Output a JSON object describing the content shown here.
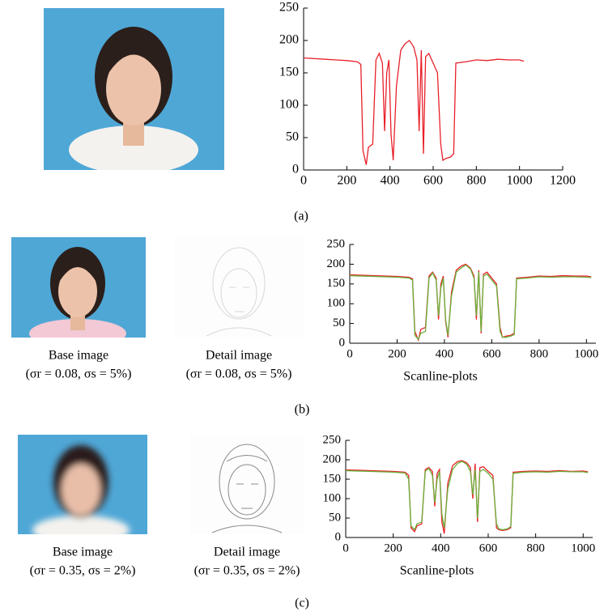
{
  "chart_data": [
    {
      "type": "line",
      "x": [
        0,
        50,
        100,
        150,
        200,
        250,
        265,
        275,
        290,
        300,
        320,
        335,
        350,
        365,
        375,
        385,
        395,
        405,
        415,
        430,
        450,
        470,
        490,
        510,
        525,
        535,
        545,
        555,
        565,
        580,
        600,
        620,
        635,
        645,
        660,
        680,
        695,
        705,
        750,
        800,
        850,
        900,
        950,
        1000,
        1020
      ],
      "series": [
        {
          "color": "#e8202a",
          "values": [
            173,
            172,
            171,
            170,
            169,
            167,
            163,
            30,
            8,
            35,
            40,
            170,
            180,
            165,
            60,
            150,
            170,
            55,
            15,
            130,
            185,
            195,
            200,
            190,
            170,
            60,
            185,
            25,
            175,
            180,
            165,
            150,
            40,
            15,
            18,
            20,
            25,
            165,
            167,
            170,
            169,
            171,
            170,
            170,
            168
          ]
        }
      ],
      "xlim": [
        0,
        1200
      ],
      "xticks": [
        0,
        200,
        400,
        600,
        800,
        1000,
        1200
      ],
      "ylim": [
        0,
        250
      ],
      "yticks": [
        0,
        50,
        100,
        150,
        200,
        250
      ]
    },
    {
      "type": "line",
      "x_label": "Scanline-plots",
      "x": [
        0,
        50,
        100,
        150,
        200,
        250,
        265,
        275,
        290,
        300,
        320,
        335,
        350,
        365,
        375,
        385,
        395,
        405,
        415,
        430,
        450,
        470,
        490,
        510,
        525,
        535,
        545,
        555,
        565,
        580,
        600,
        620,
        635,
        645,
        660,
        680,
        695,
        705,
        750,
        800,
        850,
        900,
        950,
        1000,
        1020
      ],
      "series": [
        {
          "color": "#e8202a",
          "values": [
            173,
            172,
            171,
            170,
            169,
            167,
            163,
            30,
            8,
            35,
            40,
            170,
            180,
            165,
            60,
            150,
            170,
            55,
            15,
            130,
            185,
            195,
            200,
            190,
            170,
            60,
            185,
            25,
            175,
            180,
            165,
            150,
            40,
            15,
            18,
            20,
            25,
            165,
            167,
            170,
            169,
            171,
            170,
            170,
            168
          ]
        },
        {
          "color": "#6ab23a",
          "values": [
            171,
            170,
            169,
            168,
            167,
            165,
            160,
            20,
            10,
            25,
            30,
            165,
            178,
            160,
            70,
            140,
            165,
            60,
            20,
            120,
            180,
            190,
            198,
            188,
            165,
            70,
            180,
            30,
            170,
            175,
            160,
            145,
            30,
            15,
            15,
            18,
            22,
            163,
            165,
            168,
            167,
            168,
            168,
            167,
            166
          ]
        }
      ],
      "xlim": [
        0,
        1040
      ],
      "xticks": [
        0,
        200,
        400,
        600,
        800,
        1000
      ],
      "ylim": [
        0,
        250
      ],
      "yticks": [
        0,
        50,
        100,
        150,
        200,
        250
      ]
    },
    {
      "type": "line",
      "x_label": "Scanline-plots",
      "x": [
        0,
        50,
        100,
        150,
        200,
        250,
        265,
        275,
        290,
        300,
        320,
        335,
        350,
        365,
        375,
        385,
        395,
        405,
        415,
        430,
        450,
        470,
        490,
        510,
        525,
        535,
        545,
        555,
        565,
        580,
        600,
        620,
        635,
        645,
        660,
        680,
        695,
        705,
        750,
        800,
        850,
        900,
        950,
        1000,
        1020
      ],
      "series": [
        {
          "color": "#e8202a",
          "values": [
            174,
            173,
            172,
            171,
            170,
            168,
            160,
            25,
            15,
            30,
            35,
            175,
            180,
            170,
            80,
            165,
            175,
            40,
            10,
            140,
            185,
            195,
            198,
            192,
            180,
            100,
            190,
            40,
            180,
            182,
            170,
            160,
            25,
            20,
            18,
            20,
            25,
            168,
            170,
            171,
            170,
            172,
            170,
            171,
            169
          ]
        },
        {
          "color": "#6ab23a",
          "values": [
            172,
            171,
            170,
            169,
            168,
            166,
            150,
            30,
            20,
            35,
            40,
            170,
            178,
            160,
            90,
            150,
            170,
            60,
            25,
            125,
            175,
            190,
            196,
            188,
            170,
            110,
            175,
            50,
            170,
            175,
            165,
            150,
            35,
            22,
            20,
            22,
            28,
            165,
            168,
            169,
            168,
            170,
            169,
            169,
            167
          ]
        }
      ],
      "xlim": [
        0,
        1040
      ],
      "xticks": [
        0,
        200,
        400,
        600,
        800,
        1000
      ],
      "ylim": [
        0,
        250
      ],
      "yticks": [
        0,
        50,
        100,
        150,
        200,
        250
      ]
    }
  ],
  "figure": {
    "panels": [
      {
        "label": "(a)"
      },
      {
        "label": "(b)",
        "images": [
          {
            "caption": "Base image",
            "params": "(σr = 0.08, σs = 5%)"
          },
          {
            "caption": "Detail image",
            "params": "(σr = 0.08, σs = 5%)"
          }
        ]
      },
      {
        "label": "(c)",
        "images": [
          {
            "caption": "Base image",
            "params": "(σr = 0.35, σs = 2%)"
          },
          {
            "caption": "Detail image",
            "params": "(σr = 0.35, σs = 2%)"
          }
        ]
      }
    ]
  }
}
